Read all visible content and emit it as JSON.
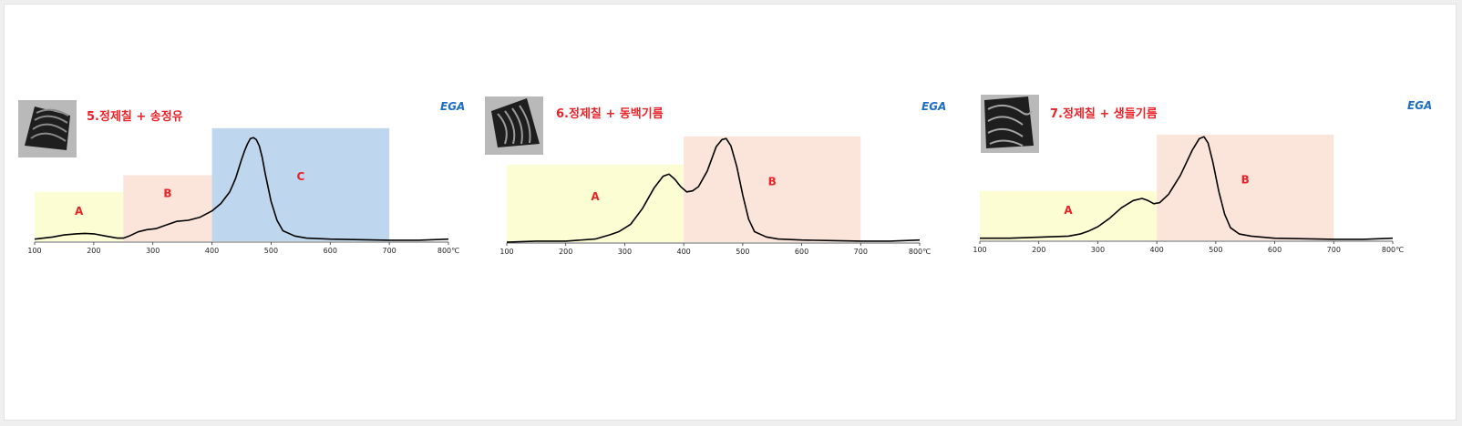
{
  "chart_data": [
    {
      "type": "line",
      "title": "5.정제칠 + 송정유",
      "corner_label": "EGA",
      "x_ticks": [
        "100",
        "200",
        "300",
        "400",
        "500",
        "600",
        "700",
        "800℃"
      ],
      "xlim": [
        100,
        800
      ],
      "ylim": [
        0,
        1
      ],
      "regions": [
        {
          "label": "A",
          "x": [
            100,
            250
          ],
          "top": 0.47,
          "color": "#fcfdd2"
        },
        {
          "label": "B",
          "x": [
            250,
            400
          ],
          "top": 0.63,
          "color": "#fbe5da"
        },
        {
          "label": "C",
          "x": [
            400,
            700
          ],
          "top": 1.08,
          "color": "#bed7ee"
        }
      ],
      "series": [
        {
          "x": [
            100,
            130,
            150,
            170,
            185,
            200,
            220,
            240,
            250,
            260,
            275,
            290,
            305,
            320,
            340,
            360,
            380,
            400,
            415,
            430,
            440,
            450,
            455,
            460,
            465,
            470,
            475,
            480,
            485,
            490,
            500,
            510,
            520,
            540,
            560,
            600,
            650,
            700,
            750,
            800
          ],
          "y": [
            0.02,
            0.04,
            0.06,
            0.07,
            0.075,
            0.07,
            0.05,
            0.03,
            0.03,
            0.05,
            0.09,
            0.11,
            0.12,
            0.15,
            0.19,
            0.2,
            0.23,
            0.29,
            0.36,
            0.47,
            0.6,
            0.78,
            0.86,
            0.93,
            0.98,
            0.99,
            0.97,
            0.91,
            0.8,
            0.65,
            0.38,
            0.2,
            0.1,
            0.05,
            0.03,
            0.02,
            0.015,
            0.01,
            0.01,
            0.02
          ]
        }
      ]
    },
    {
      "type": "line",
      "title": "6.정제칠 + 동백기름",
      "corner_label": "EGA",
      "x_ticks": [
        "100",
        "200",
        "300",
        "400",
        "500",
        "600",
        "700",
        "800℃"
      ],
      "xlim": [
        100,
        800
      ],
      "ylim": [
        0,
        1
      ],
      "regions": [
        {
          "label": "A",
          "x": [
            100,
            400
          ],
          "top": 0.74,
          "color": "#fcfdd2"
        },
        {
          "label": "B",
          "x": [
            400,
            700
          ],
          "top": 1.01,
          "color": "#fbe5da"
        }
      ],
      "series": [
        {
          "x": [
            100,
            150,
            200,
            250,
            275,
            290,
            310,
            330,
            350,
            365,
            375,
            385,
            395,
            405,
            415,
            425,
            440,
            455,
            465,
            472,
            480,
            490,
            500,
            510,
            520,
            540,
            560,
            600,
            650,
            700,
            750,
            800
          ],
          "y": [
            0.0,
            0.01,
            0.01,
            0.03,
            0.07,
            0.1,
            0.17,
            0.32,
            0.52,
            0.63,
            0.65,
            0.6,
            0.53,
            0.48,
            0.49,
            0.53,
            0.68,
            0.91,
            0.98,
            0.99,
            0.92,
            0.72,
            0.45,
            0.22,
            0.1,
            0.05,
            0.03,
            0.02,
            0.015,
            0.01,
            0.01,
            0.02
          ]
        }
      ]
    },
    {
      "type": "line",
      "title": "7.정제칠 + 생들기름",
      "corner_label": "EGA",
      "x_ticks": [
        "100",
        "200",
        "300",
        "400",
        "500",
        "600",
        "700",
        "800℃"
      ],
      "xlim": [
        100,
        800
      ],
      "ylim": [
        0,
        1
      ],
      "regions": [
        {
          "label": "A",
          "x": [
            100,
            400
          ],
          "top": 0.47,
          "color": "#fcfdd2"
        },
        {
          "label": "B",
          "x": [
            400,
            700
          ],
          "top": 1.01,
          "color": "#fbe5da"
        }
      ],
      "series": [
        {
          "x": [
            100,
            150,
            200,
            250,
            270,
            285,
            300,
            320,
            340,
            360,
            375,
            385,
            395,
            405,
            420,
            440,
            460,
            472,
            480,
            487,
            495,
            505,
            515,
            525,
            540,
            560,
            600,
            650,
            700,
            750,
            800
          ],
          "y": [
            0.02,
            0.02,
            0.03,
            0.04,
            0.06,
            0.09,
            0.13,
            0.21,
            0.31,
            0.38,
            0.4,
            0.38,
            0.35,
            0.36,
            0.44,
            0.62,
            0.86,
            0.97,
            0.99,
            0.93,
            0.75,
            0.47,
            0.25,
            0.12,
            0.06,
            0.04,
            0.02,
            0.015,
            0.01,
            0.01,
            0.02
          ]
        }
      ]
    }
  ]
}
